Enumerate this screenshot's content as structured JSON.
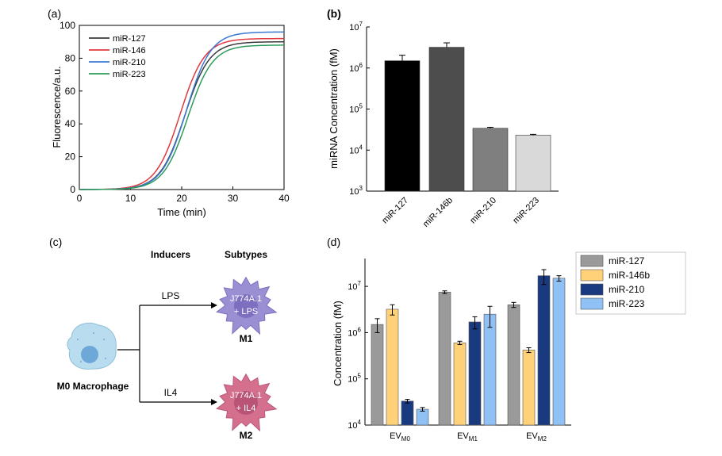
{
  "colors": {
    "miR-127": "#3a3a3a",
    "miR-146": "#e0393e",
    "miR-210": "#3a78d4",
    "miR-223": "#2e9b5a",
    "bar_b": [
      "#000000",
      "#4d4d4d",
      "#7f7f7f",
      "#d9d9d9"
    ],
    "bar_d": [
      "#9a9a9a",
      "#ffd27a",
      "#1a3a80",
      "#8fc1f5"
    ],
    "macrophage": "#b9dcee",
    "nucleus": "#6ea8d8",
    "m1": "#9b8fd3",
    "m2": "#d46f8d"
  },
  "chart_data": [
    {
      "type": "line",
      "panel_label": "(a)",
      "xlabel": "Time (min)",
      "ylabel": "Fluorescence/a.u.",
      "xlim": [
        0,
        40
      ],
      "ylim": [
        0,
        100
      ],
      "xticks": [
        "0",
        "10",
        "20",
        "30",
        "40"
      ],
      "yticks": [
        "0",
        "20",
        "40",
        "60",
        "80",
        "100"
      ],
      "legend": "top-left",
      "series": [
        {
          "name": "miR-127",
          "plateau": 90,
          "midpoint": 20.6
        },
        {
          "name": "miR-146",
          "plateau": 92,
          "midpoint": 19.7
        },
        {
          "name": "miR-210",
          "plateau": 96,
          "midpoint": 20.9
        },
        {
          "name": "miR-223",
          "plateau": 88,
          "midpoint": 21.2
        }
      ]
    },
    {
      "type": "bar",
      "panel_label": "(b)",
      "ylabel": "miRNA Concentration (fM)",
      "yscale": "log",
      "ylim": [
        1000,
        10000000
      ],
      "yticks": [
        {
          "base": "10",
          "exp": "3"
        },
        {
          "base": "10",
          "exp": "4"
        },
        {
          "base": "10",
          "exp": "5"
        },
        {
          "base": "10",
          "exp": "6"
        },
        {
          "base": "10",
          "exp": "7"
        }
      ],
      "categories": [
        "miR-127",
        "miR-146b",
        "miR-210",
        "miR-223"
      ],
      "values": [
        1500000,
        3200000,
        34000,
        23000
      ],
      "errors": [
        550000,
        900000,
        2000,
        1200
      ]
    },
    {
      "type": "bar",
      "panel_label": "(d)",
      "ylabel": "Concentration (fM)",
      "yscale": "log",
      "ylim": [
        10000,
        40000000
      ],
      "yticks": [
        {
          "base": "10",
          "exp": "4"
        },
        {
          "base": "10",
          "exp": "5"
        },
        {
          "base": "10",
          "exp": "6"
        },
        {
          "base": "10",
          "exp": "7"
        }
      ],
      "groups": [
        {
          "base": "EV",
          "sub": "M0"
        },
        {
          "base": "EV",
          "sub": "M1"
        },
        {
          "base": "EV",
          "sub": "M2"
        }
      ],
      "legend": "outside-right",
      "series": [
        {
          "name": "miR-127",
          "values": [
            1500000,
            7500000,
            4000000
          ],
          "errors": [
            500000,
            500000,
            500000
          ]
        },
        {
          "name": "miR-146b",
          "values": [
            3200000,
            600000,
            420000
          ],
          "errors": [
            800000,
            50000,
            50000
          ]
        },
        {
          "name": "miR-210",
          "values": [
            33000,
            1700000,
            17000000
          ],
          "errors": [
            3000,
            500000,
            6000000
          ]
        },
        {
          "name": "miR-223",
          "values": [
            22000,
            2500000,
            15000000
          ],
          "errors": [
            2000,
            1200000,
            2000000
          ]
        }
      ]
    }
  ],
  "diagram": {
    "panel_label": "(c)",
    "inducers_header": "Inducers",
    "subtypes_header": "Subtypes",
    "m0_label": "M0 Macrophage",
    "lps": "LPS",
    "il4": "IL4",
    "m1_cell_line1": "J774A.1",
    "m1_cell_line2": "+ LPS",
    "m1_label": "M1",
    "m2_cell_line1": "J774A.1",
    "m2_cell_line2": "+ IL4",
    "m2_label": "M2"
  }
}
